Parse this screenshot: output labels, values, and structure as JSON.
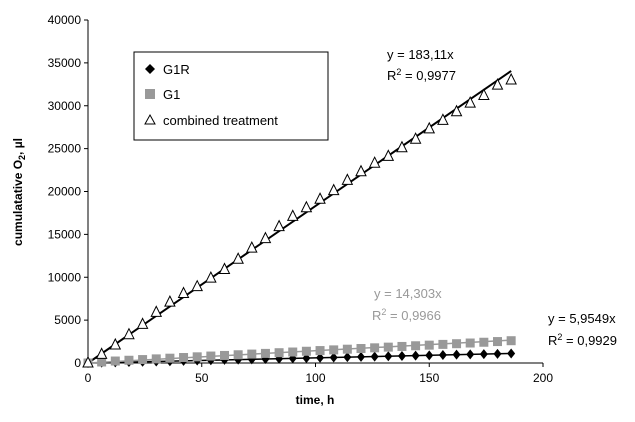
{
  "chart_data": {
    "type": "scatter",
    "xlabel": "time, h",
    "ylabel_main": "cumulatative O",
    "ylabel_sub": "2",
    "ylabel_tail": ", µl",
    "xlim": [
      0,
      200
    ],
    "ylim": [
      0,
      40000
    ],
    "xticks": [
      "0",
      "50",
      "100",
      "150",
      "200"
    ],
    "yticks": [
      "0",
      "5000",
      "10000",
      "15000",
      "20000",
      "25000",
      "30000",
      "35000",
      "40000"
    ],
    "grid": false,
    "legend_position": "top-left",
    "series": [
      {
        "name": "G1R",
        "marker": "diamond",
        "color": "#000000",
        "x": [
          0,
          6,
          12,
          18,
          24,
          30,
          36,
          42,
          48,
          54,
          60,
          66,
          72,
          78,
          84,
          90,
          96,
          102,
          108,
          114,
          120,
          126,
          132,
          138,
          144,
          150,
          156,
          162,
          168,
          174,
          180,
          186
        ],
        "y": [
          0,
          40,
          70,
          110,
          140,
          180,
          210,
          250,
          290,
          320,
          360,
          390,
          430,
          460,
          500,
          540,
          570,
          610,
          640,
          680,
          720,
          750,
          790,
          820,
          860,
          890,
          930,
          970,
          1000,
          1040,
          1070,
          1110
        ],
        "trend": {
          "slope": 5.9549,
          "color": "#000000"
        },
        "eq_line1": "y = 5,9549x",
        "r2_value": " = 0,9929"
      },
      {
        "name": "G1",
        "marker": "square",
        "color": "#999999",
        "x": [
          0,
          6,
          12,
          18,
          24,
          30,
          36,
          42,
          48,
          54,
          60,
          66,
          72,
          78,
          84,
          90,
          96,
          102,
          108,
          114,
          120,
          126,
          132,
          138,
          144,
          150,
          156,
          162,
          168,
          174,
          180,
          186
        ],
        "y": [
          0,
          120,
          230,
          320,
          400,
          480,
          560,
          640,
          720,
          810,
          880,
          960,
          1040,
          1120,
          1200,
          1280,
          1370,
          1450,
          1530,
          1610,
          1690,
          1770,
          1850,
          1930,
          2010,
          2080,
          2170,
          2250,
          2330,
          2420,
          2500,
          2600
        ],
        "trend": {
          "slope": 14.303,
          "color": "#999999"
        },
        "eq_line1": "y = 14,303x",
        "r2_value": " = 0,9966"
      },
      {
        "name": "combined treatment",
        "marker": "triangle-open",
        "color": "#000000",
        "x": [
          0,
          6,
          12,
          18,
          24,
          30,
          36,
          42,
          48,
          54,
          60,
          66,
          72,
          78,
          84,
          90,
          96,
          102,
          108,
          114,
          120,
          126,
          132,
          138,
          144,
          150,
          156,
          162,
          168,
          174,
          180,
          186
        ],
        "y": [
          0,
          1000,
          2100,
          3300,
          4500,
          5900,
          7100,
          8100,
          8900,
          9900,
          10900,
          12100,
          13400,
          14500,
          15900,
          17100,
          18100,
          19100,
          20100,
          21300,
          22300,
          23300,
          24100,
          25100,
          26100,
          27300,
          28300,
          29300,
          30300,
          31200,
          32400,
          33000
        ],
        "trend": {
          "slope": 183.11,
          "color": "#000000"
        },
        "eq_line1": "y = 183,11x",
        "r2_value": " = 0,9977"
      }
    ],
    "r2_prefix": "R",
    "r2_sup": "2"
  }
}
